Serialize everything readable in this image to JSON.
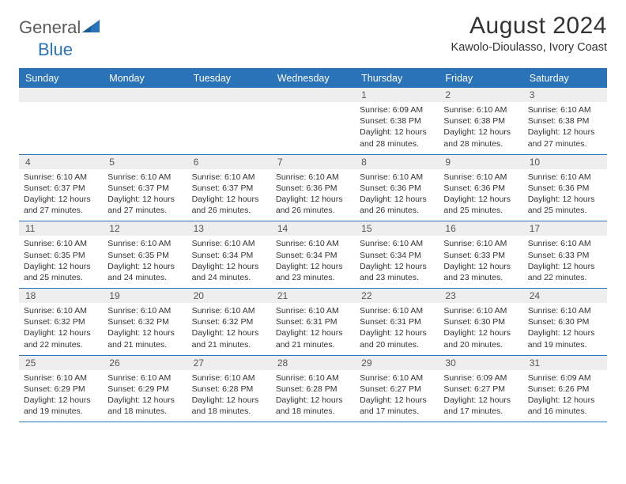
{
  "brand": {
    "part1": "General",
    "part2": "Blue"
  },
  "title": "August 2024",
  "subtitle": "Kawolo-Dioulasso, Ivory Coast",
  "colors": {
    "primary": "#2a73b8",
    "daynum_bg": "#eeeeee",
    "text": "#333333",
    "logo_grey": "#5b5b5b"
  },
  "day_headers": [
    "Sunday",
    "Monday",
    "Tuesday",
    "Wednesday",
    "Thursday",
    "Friday",
    "Saturday"
  ],
  "weeks": [
    [
      {
        "empty": true
      },
      {
        "empty": true
      },
      {
        "empty": true
      },
      {
        "empty": true
      },
      {
        "n": "1",
        "sunrise": "Sunrise: 6:09 AM",
        "sunset": "Sunset: 6:38 PM",
        "day1": "Daylight: 12 hours",
        "day2": "and 28 minutes."
      },
      {
        "n": "2",
        "sunrise": "Sunrise: 6:10 AM",
        "sunset": "Sunset: 6:38 PM",
        "day1": "Daylight: 12 hours",
        "day2": "and 28 minutes."
      },
      {
        "n": "3",
        "sunrise": "Sunrise: 6:10 AM",
        "sunset": "Sunset: 6:38 PM",
        "day1": "Daylight: 12 hours",
        "day2": "and 27 minutes."
      }
    ],
    [
      {
        "n": "4",
        "sunrise": "Sunrise: 6:10 AM",
        "sunset": "Sunset: 6:37 PM",
        "day1": "Daylight: 12 hours",
        "day2": "and 27 minutes."
      },
      {
        "n": "5",
        "sunrise": "Sunrise: 6:10 AM",
        "sunset": "Sunset: 6:37 PM",
        "day1": "Daylight: 12 hours",
        "day2": "and 27 minutes."
      },
      {
        "n": "6",
        "sunrise": "Sunrise: 6:10 AM",
        "sunset": "Sunset: 6:37 PM",
        "day1": "Daylight: 12 hours",
        "day2": "and 26 minutes."
      },
      {
        "n": "7",
        "sunrise": "Sunrise: 6:10 AM",
        "sunset": "Sunset: 6:36 PM",
        "day1": "Daylight: 12 hours",
        "day2": "and 26 minutes."
      },
      {
        "n": "8",
        "sunrise": "Sunrise: 6:10 AM",
        "sunset": "Sunset: 6:36 PM",
        "day1": "Daylight: 12 hours",
        "day2": "and 26 minutes."
      },
      {
        "n": "9",
        "sunrise": "Sunrise: 6:10 AM",
        "sunset": "Sunset: 6:36 PM",
        "day1": "Daylight: 12 hours",
        "day2": "and 25 minutes."
      },
      {
        "n": "10",
        "sunrise": "Sunrise: 6:10 AM",
        "sunset": "Sunset: 6:36 PM",
        "day1": "Daylight: 12 hours",
        "day2": "and 25 minutes."
      }
    ],
    [
      {
        "n": "11",
        "sunrise": "Sunrise: 6:10 AM",
        "sunset": "Sunset: 6:35 PM",
        "day1": "Daylight: 12 hours",
        "day2": "and 25 minutes."
      },
      {
        "n": "12",
        "sunrise": "Sunrise: 6:10 AM",
        "sunset": "Sunset: 6:35 PM",
        "day1": "Daylight: 12 hours",
        "day2": "and 24 minutes."
      },
      {
        "n": "13",
        "sunrise": "Sunrise: 6:10 AM",
        "sunset": "Sunset: 6:34 PM",
        "day1": "Daylight: 12 hours",
        "day2": "and 24 minutes."
      },
      {
        "n": "14",
        "sunrise": "Sunrise: 6:10 AM",
        "sunset": "Sunset: 6:34 PM",
        "day1": "Daylight: 12 hours",
        "day2": "and 23 minutes."
      },
      {
        "n": "15",
        "sunrise": "Sunrise: 6:10 AM",
        "sunset": "Sunset: 6:34 PM",
        "day1": "Daylight: 12 hours",
        "day2": "and 23 minutes."
      },
      {
        "n": "16",
        "sunrise": "Sunrise: 6:10 AM",
        "sunset": "Sunset: 6:33 PM",
        "day1": "Daylight: 12 hours",
        "day2": "and 23 minutes."
      },
      {
        "n": "17",
        "sunrise": "Sunrise: 6:10 AM",
        "sunset": "Sunset: 6:33 PM",
        "day1": "Daylight: 12 hours",
        "day2": "and 22 minutes."
      }
    ],
    [
      {
        "n": "18",
        "sunrise": "Sunrise: 6:10 AM",
        "sunset": "Sunset: 6:32 PM",
        "day1": "Daylight: 12 hours",
        "day2": "and 22 minutes."
      },
      {
        "n": "19",
        "sunrise": "Sunrise: 6:10 AM",
        "sunset": "Sunset: 6:32 PM",
        "day1": "Daylight: 12 hours",
        "day2": "and 21 minutes."
      },
      {
        "n": "20",
        "sunrise": "Sunrise: 6:10 AM",
        "sunset": "Sunset: 6:32 PM",
        "day1": "Daylight: 12 hours",
        "day2": "and 21 minutes."
      },
      {
        "n": "21",
        "sunrise": "Sunrise: 6:10 AM",
        "sunset": "Sunset: 6:31 PM",
        "day1": "Daylight: 12 hours",
        "day2": "and 21 minutes."
      },
      {
        "n": "22",
        "sunrise": "Sunrise: 6:10 AM",
        "sunset": "Sunset: 6:31 PM",
        "day1": "Daylight: 12 hours",
        "day2": "and 20 minutes."
      },
      {
        "n": "23",
        "sunrise": "Sunrise: 6:10 AM",
        "sunset": "Sunset: 6:30 PM",
        "day1": "Daylight: 12 hours",
        "day2": "and 20 minutes."
      },
      {
        "n": "24",
        "sunrise": "Sunrise: 6:10 AM",
        "sunset": "Sunset: 6:30 PM",
        "day1": "Daylight: 12 hours",
        "day2": "and 19 minutes."
      }
    ],
    [
      {
        "n": "25",
        "sunrise": "Sunrise: 6:10 AM",
        "sunset": "Sunset: 6:29 PM",
        "day1": "Daylight: 12 hours",
        "day2": "and 19 minutes."
      },
      {
        "n": "26",
        "sunrise": "Sunrise: 6:10 AM",
        "sunset": "Sunset: 6:29 PM",
        "day1": "Daylight: 12 hours",
        "day2": "and 18 minutes."
      },
      {
        "n": "27",
        "sunrise": "Sunrise: 6:10 AM",
        "sunset": "Sunset: 6:28 PM",
        "day1": "Daylight: 12 hours",
        "day2": "and 18 minutes."
      },
      {
        "n": "28",
        "sunrise": "Sunrise: 6:10 AM",
        "sunset": "Sunset: 6:28 PM",
        "day1": "Daylight: 12 hours",
        "day2": "and 18 minutes."
      },
      {
        "n": "29",
        "sunrise": "Sunrise: 6:10 AM",
        "sunset": "Sunset: 6:27 PM",
        "day1": "Daylight: 12 hours",
        "day2": "and 17 minutes."
      },
      {
        "n": "30",
        "sunrise": "Sunrise: 6:09 AM",
        "sunset": "Sunset: 6:27 PM",
        "day1": "Daylight: 12 hours",
        "day2": "and 17 minutes."
      },
      {
        "n": "31",
        "sunrise": "Sunrise: 6:09 AM",
        "sunset": "Sunset: 6:26 PM",
        "day1": "Daylight: 12 hours",
        "day2": "and 16 minutes."
      }
    ]
  ]
}
